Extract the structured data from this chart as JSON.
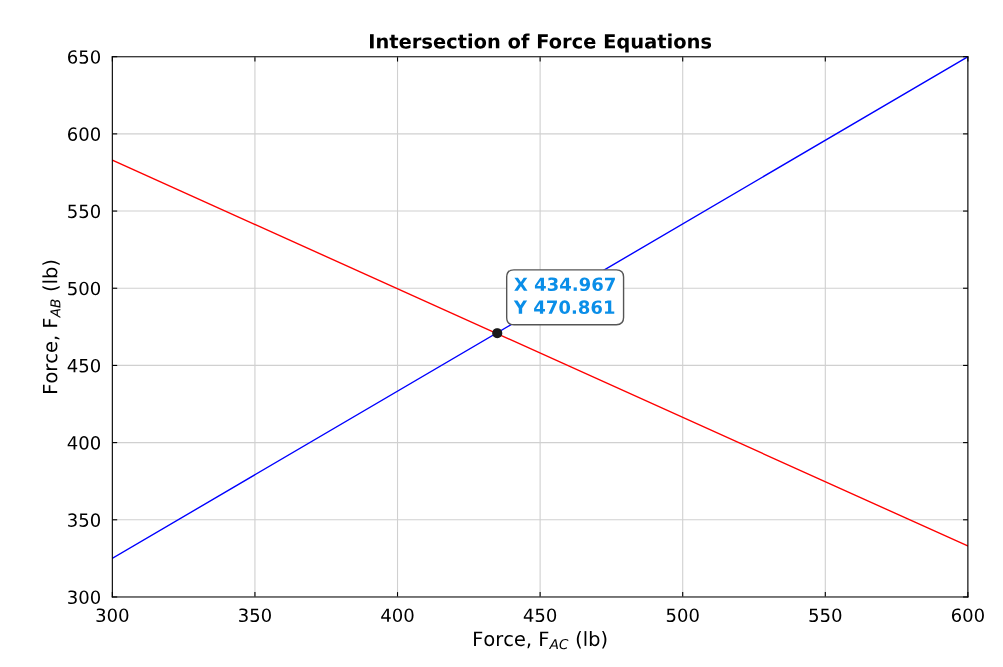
{
  "chart_data": {
    "type": "line",
    "title": "Intersection of Force Equations",
    "xlabel": "Force, F$_{AC}$ (lb)",
    "ylabel": "Force, F$_{AB}$ (lb)",
    "xlim": [
      300,
      600
    ],
    "ylim": [
      300,
      650
    ],
    "xticks": [
      300,
      350,
      400,
      450,
      500,
      550,
      600
    ],
    "yticks": [
      300,
      350,
      400,
      450,
      500,
      550,
      600,
      650
    ],
    "grid": true,
    "series": [
      {
        "color": "#0000ff",
        "x": [
          300,
          600
        ],
        "values": [
          325,
          650
        ]
      },
      {
        "color": "#ff0000",
        "x": [
          300,
          600
        ],
        "values": [
          583,
          333
        ]
      },
      {
        "type": "scatter",
        "color": "#1a1a1a",
        "x": [
          434.967
        ],
        "values": [
          470.861
        ]
      }
    ],
    "annotations": [
      {
        "text": "X 434.967\nY 470.861",
        "x": 434.967,
        "y": 470.861
      }
    ]
  }
}
